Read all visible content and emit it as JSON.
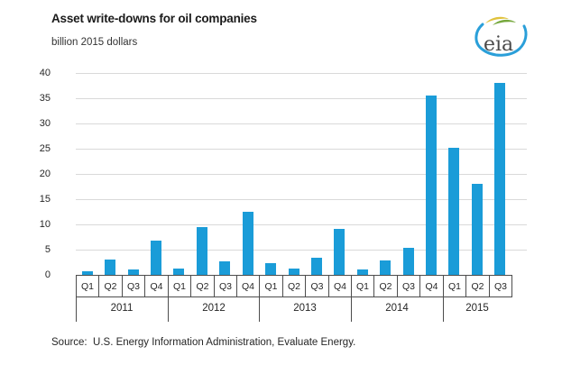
{
  "header": {
    "title": "Asset write-downs for oil companies",
    "subtitle": "billion 2015 dollars",
    "logo_text": "eia"
  },
  "chart_data": {
    "type": "bar",
    "title": "Asset write-downs for oil companies",
    "ylabel": "billion 2015 dollars",
    "ylim": [
      0,
      40
    ],
    "ytick_step": 5,
    "grid": true,
    "legend": "none",
    "bar_color": "#1a9cd8",
    "categories": [
      "Q1",
      "Q2",
      "Q3",
      "Q4",
      "Q1",
      "Q2",
      "Q3",
      "Q4",
      "Q1",
      "Q2",
      "Q3",
      "Q4",
      "Q1",
      "Q2",
      "Q3",
      "Q4",
      "Q1",
      "Q2",
      "Q3"
    ],
    "groups": [
      {
        "year": "2011",
        "quarters": [
          "Q1",
          "Q2",
          "Q3",
          "Q4"
        ],
        "values": [
          0.7,
          3.0,
          1.1,
          6.7
        ]
      },
      {
        "year": "2012",
        "quarters": [
          "Q1",
          "Q2",
          "Q3",
          "Q4"
        ],
        "values": [
          1.3,
          9.4,
          2.7,
          12.5
        ]
      },
      {
        "year": "2013",
        "quarters": [
          "Q1",
          "Q2",
          "Q3",
          "Q4"
        ],
        "values": [
          2.4,
          1.3,
          3.4,
          9.1
        ]
      },
      {
        "year": "2014",
        "quarters": [
          "Q1",
          "Q2",
          "Q3",
          "Q4"
        ],
        "values": [
          1.1,
          2.9,
          5.4,
          35.6
        ]
      },
      {
        "year": "2015",
        "quarters": [
          "Q1",
          "Q2",
          "Q3"
        ],
        "values": [
          25.2,
          18.0,
          38.1
        ]
      }
    ]
  },
  "footer": {
    "source": "Source:  U.S. Energy Information Administration, Evaluate Energy."
  },
  "colors": {
    "bar": "#1a9cd8",
    "gridline": "#d9d9d9",
    "axis": "#4d4d4d",
    "logo_blue": "#2a9fd9",
    "logo_green": "#76a83d",
    "logo_yellow": "#e0c23c"
  }
}
